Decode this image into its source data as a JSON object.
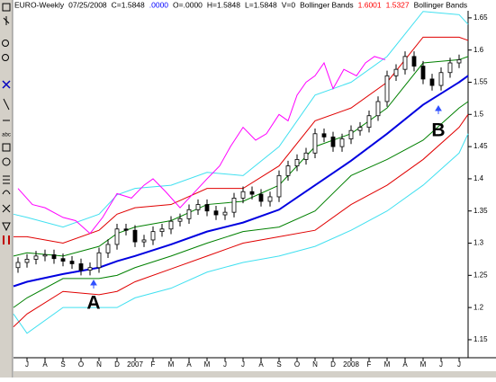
{
  "chart_data": {
    "type": "candlestick",
    "header": [
      {
        "text": "EURO-Weekly",
        "color": "#000000"
      },
      {
        "text": "07/25/2008",
        "color": "#000000"
      },
      {
        "text": "C=1.5848",
        "color": "#000000"
      },
      {
        "text": ".0000",
        "color": "#0000ff"
      },
      {
        "text": "O=.0000",
        "color": "#000000"
      },
      {
        "text": "H=1.5848",
        "color": "#000000"
      },
      {
        "text": "L=1.5848",
        "color": "#000000"
      },
      {
        "text": "V=0",
        "color": "#000000"
      },
      {
        "text": "Bollinger Bands",
        "color": "#000000"
      },
      {
        "text": "1.6001",
        "color": "#ff0000"
      },
      {
        "text": "1.5327",
        "color": "#ff0000"
      },
      {
        "text": "Bollinger Bands",
        "color": "#000000"
      }
    ],
    "annotations": [
      "A",
      "B"
    ],
    "xlim": [
      -0.75,
      24.5
    ],
    "xticks": [
      {
        "value": 0,
        "label": "J"
      },
      {
        "value": 1,
        "label": "A"
      },
      {
        "value": 2,
        "label": "S"
      },
      {
        "value": 3,
        "label": "O"
      },
      {
        "value": 4,
        "label": "N"
      },
      {
        "value": 5,
        "label": "D"
      },
      {
        "value": 6,
        "label": "2007"
      },
      {
        "value": 7,
        "label": "F"
      },
      {
        "value": 8,
        "label": "M"
      },
      {
        "value": 9,
        "label": "A"
      },
      {
        "value": 10,
        "label": "M"
      },
      {
        "value": 11,
        "label": "J"
      },
      {
        "value": 12,
        "label": "J"
      },
      {
        "value": 13,
        "label": "A"
      },
      {
        "value": 14,
        "label": "S"
      },
      {
        "value": 15,
        "label": "O"
      },
      {
        "value": 16,
        "label": "N"
      },
      {
        "value": 17,
        "label": "D"
      },
      {
        "value": 18,
        "label": "2008"
      },
      {
        "value": 19,
        "label": "F"
      },
      {
        "value": 20,
        "label": "M"
      },
      {
        "value": 21,
        "label": "A"
      },
      {
        "value": 22,
        "label": "M"
      },
      {
        "value": 23,
        "label": "J"
      },
      {
        "value": 24,
        "label": "J"
      }
    ],
    "ylim": [
      1.122,
      1.661
    ],
    "yticks": [
      1.15,
      1.2,
      1.25,
      1.3,
      1.35,
      1.4,
      1.45,
      1.5,
      1.55,
      1.6,
      1.65
    ],
    "candles": {
      "x": [
        -0.5,
        0,
        0.5,
        1,
        1.5,
        2,
        2.5,
        3,
        3.5,
        4,
        4.5,
        5,
        5.5,
        6,
        6.5,
        7,
        7.5,
        8,
        8.5,
        9,
        9.5,
        10,
        10.5,
        11,
        11.5,
        12,
        12.5,
        13,
        13.5,
        14,
        14.5,
        15,
        15.5,
        16,
        16.5,
        17,
        17.5,
        18,
        18.5,
        19,
        19.5,
        20,
        20.5,
        21,
        21.5,
        22,
        22.5,
        23,
        23.5,
        24
      ],
      "open": [
        1.262,
        1.27,
        1.275,
        1.28,
        1.282,
        1.276,
        1.272,
        1.268,
        1.258,
        1.262,
        1.285,
        1.298,
        1.322,
        1.32,
        1.302,
        1.305,
        1.318,
        1.322,
        1.334,
        1.338,
        1.352,
        1.36,
        1.35,
        1.344,
        1.348,
        1.37,
        1.38,
        1.376,
        1.365,
        1.372,
        1.405,
        1.42,
        1.43,
        1.44,
        1.47,
        1.465,
        1.45,
        1.462,
        1.475,
        1.48,
        1.498,
        1.52,
        1.56,
        1.57,
        1.59,
        1.575,
        1.555,
        1.545,
        1.565,
        1.58
      ],
      "high": [
        1.278,
        1.283,
        1.288,
        1.29,
        1.29,
        1.284,
        1.28,
        1.276,
        1.27,
        1.293,
        1.306,
        1.33,
        1.33,
        1.328,
        1.313,
        1.326,
        1.33,
        1.342,
        1.346,
        1.36,
        1.368,
        1.368,
        1.358,
        1.356,
        1.378,
        1.388,
        1.388,
        1.384,
        1.38,
        1.413,
        1.428,
        1.438,
        1.448,
        1.478,
        1.478,
        1.473,
        1.47,
        1.483,
        1.488,
        1.506,
        1.528,
        1.568,
        1.578,
        1.598,
        1.598,
        1.583,
        1.563,
        1.573,
        1.588,
        1.593
      ],
      "low": [
        1.254,
        1.262,
        1.267,
        1.272,
        1.268,
        1.264,
        1.26,
        1.25,
        1.25,
        1.254,
        1.277,
        1.29,
        1.312,
        1.294,
        1.294,
        1.297,
        1.31,
        1.314,
        1.326,
        1.33,
        1.344,
        1.342,
        1.336,
        1.336,
        1.34,
        1.362,
        1.368,
        1.357,
        1.357,
        1.364,
        1.397,
        1.412,
        1.422,
        1.432,
        1.457,
        1.442,
        1.442,
        1.454,
        1.467,
        1.472,
        1.49,
        1.512,
        1.552,
        1.562,
        1.567,
        1.547,
        1.537,
        1.537,
        1.557,
        1.572
      ],
      "close": [
        1.27,
        1.275,
        1.28,
        1.282,
        1.276,
        1.272,
        1.268,
        1.258,
        1.262,
        1.285,
        1.298,
        1.322,
        1.32,
        1.302,
        1.305,
        1.318,
        1.322,
        1.334,
        1.338,
        1.352,
        1.36,
        1.35,
        1.344,
        1.348,
        1.37,
        1.38,
        1.376,
        1.365,
        1.372,
        1.405,
        1.42,
        1.43,
        1.44,
        1.47,
        1.465,
        1.45,
        1.462,
        1.475,
        1.48,
        1.498,
        1.52,
        1.56,
        1.57,
        1.59,
        1.575,
        1.555,
        1.545,
        1.565,
        1.58,
        1.585
      ],
      "up_color": "#ffffff",
      "down_color": "#000000"
    },
    "band_x": [
      -0.75,
      0,
      2,
      4,
      5,
      6,
      8,
      10,
      12,
      14,
      16,
      18,
      20,
      22,
      24,
      24.5
    ],
    "lines": [
      {
        "color": "#40e0f0",
        "values": [
          1.345,
          1.34,
          1.325,
          1.345,
          1.375,
          1.385,
          1.39,
          1.41,
          1.405,
          1.45,
          1.53,
          1.55,
          1.59,
          1.66,
          1.655,
          1.64
        ]
      },
      {
        "color": "#40e0f0",
        "values": [
          1.19,
          1.16,
          1.2,
          1.2,
          1.2,
          1.215,
          1.23,
          1.255,
          1.27,
          1.28,
          1.295,
          1.32,
          1.35,
          1.39,
          1.44,
          1.47
        ]
      },
      {
        "color": "#e00000",
        "values": [
          1.31,
          1.31,
          1.3,
          1.32,
          1.345,
          1.355,
          1.36,
          1.385,
          1.385,
          1.42,
          1.49,
          1.51,
          1.55,
          1.62,
          1.62,
          1.615
        ]
      },
      {
        "color": "#e00000",
        "values": [
          1.17,
          1.19,
          1.225,
          1.22,
          1.225,
          1.24,
          1.26,
          1.28,
          1.3,
          1.31,
          1.32,
          1.36,
          1.39,
          1.43,
          1.48,
          1.5
        ]
      },
      {
        "color": "#008000",
        "values": [
          1.28,
          1.285,
          1.28,
          1.295,
          1.315,
          1.325,
          1.335,
          1.36,
          1.365,
          1.39,
          1.45,
          1.47,
          1.51,
          1.58,
          1.585,
          1.59
        ]
      },
      {
        "color": "#008000",
        "values": [
          1.2,
          1.215,
          1.245,
          1.245,
          1.25,
          1.262,
          1.28,
          1.3,
          1.318,
          1.325,
          1.35,
          1.405,
          1.43,
          1.46,
          1.51,
          1.52
        ]
      },
      {
        "color": "#0000e0",
        "line_width": 2,
        "values": [
          1.233,
          1.24,
          1.252,
          1.262,
          1.272,
          1.28,
          1.298,
          1.318,
          1.332,
          1.352,
          1.39,
          1.428,
          1.47,
          1.515,
          1.55,
          1.56
        ]
      },
      {
        "color": "#ff00ff",
        "x": [
          -0.5,
          0.3,
          1,
          2,
          2.7,
          3.5,
          4.2,
          5,
          5.8,
          6.5,
          7,
          7.7,
          8.5,
          9.5,
          10,
          10.7,
          11.3,
          12,
          12.7,
          13.3,
          14,
          14.5,
          15,
          15.5,
          16,
          16.5,
          17,
          17.6,
          18.3,
          18.8,
          19.3,
          19.9
        ],
        "values": [
          1.385,
          1.36,
          1.355,
          1.34,
          1.335,
          1.315,
          1.34,
          1.377,
          1.37,
          1.39,
          1.4,
          1.38,
          1.355,
          1.385,
          1.4,
          1.42,
          1.45,
          1.48,
          1.46,
          1.47,
          1.5,
          1.49,
          1.53,
          1.55,
          1.56,
          1.58,
          1.54,
          1.57,
          1.56,
          1.58,
          1.59,
          1.585
        ]
      }
    ]
  }
}
